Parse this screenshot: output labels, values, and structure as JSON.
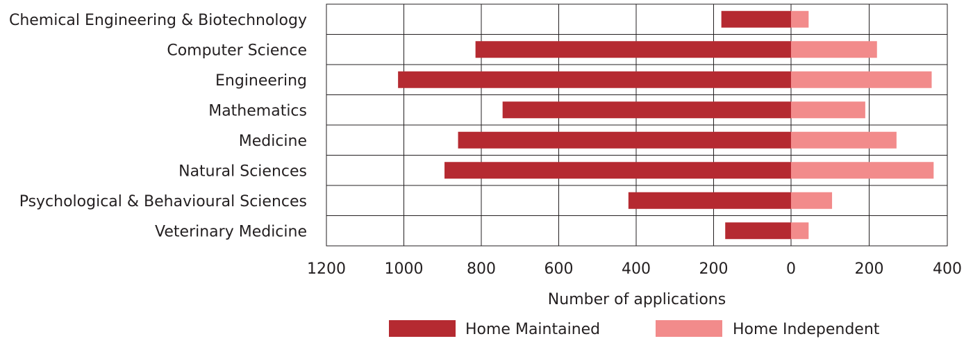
{
  "chart_data": {
    "type": "bar",
    "orientation": "horizontal-diverging",
    "categories": [
      "Chemical Engineering & Biotechnology",
      "Computer Science",
      "Engineering",
      "Mathematics",
      "Medicine",
      "Natural Sciences",
      "Psychological & Behavioural Sciences",
      "Veterinary Medicine"
    ],
    "series": [
      {
        "name": "Home Maintained",
        "color": "#b52a31",
        "side": "left",
        "values": [
          180,
          815,
          1015,
          745,
          860,
          895,
          420,
          170
        ]
      },
      {
        "name": "Home Independent",
        "color": "#f28b8b",
        "side": "right",
        "values": [
          45,
          220,
          360,
          190,
          270,
          365,
          105,
          45
        ]
      }
    ],
    "x_ticks": [
      "1200",
      "1000",
      "800",
      "600",
      "400",
      "200",
      "0",
      "200",
      "400"
    ],
    "xlim_left": [
      1200,
      0
    ],
    "xlim_right": [
      0,
      400
    ],
    "xlabel": "Number of applications",
    "grid": true,
    "legend_position": "bottom"
  }
}
